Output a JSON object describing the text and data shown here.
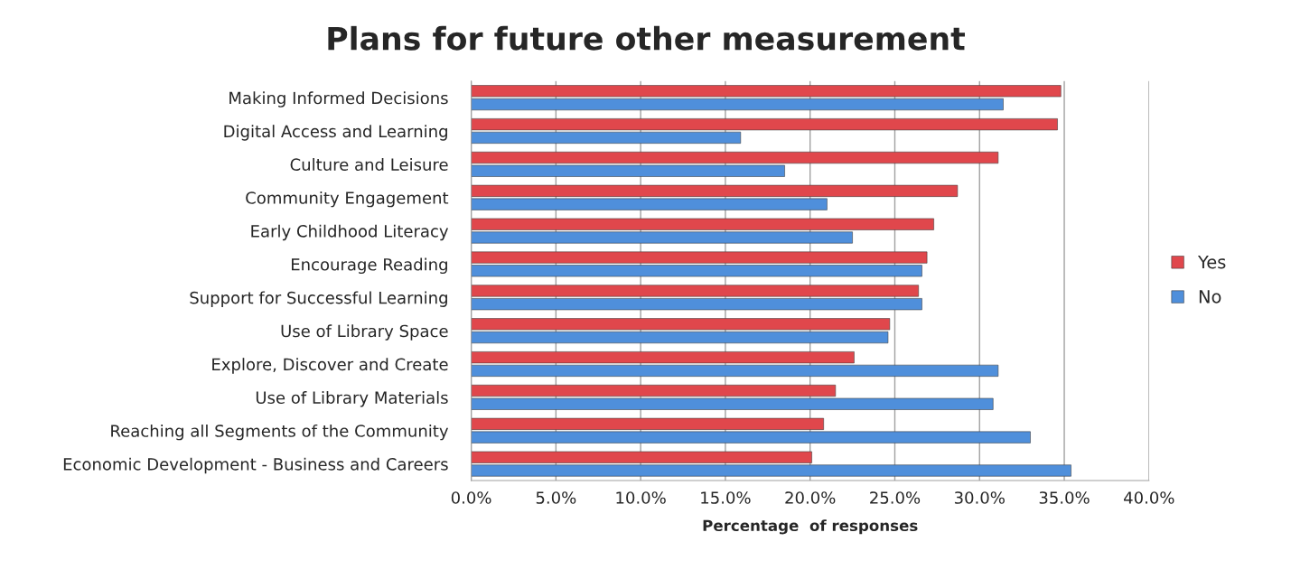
{
  "chart_data": {
    "type": "bar",
    "orientation": "horizontal",
    "title": "Plans for future other measurement",
    "xlabel": "Percentage  of responses",
    "categories": [
      "Making Informed Decisions",
      "Digital Access and Learning",
      "Culture and Leisure",
      "Community Engagement",
      "Early Childhood Literacy",
      "Encourage Reading",
      "Support for Successful Learning",
      "Use of Library Space",
      "Explore, Discover and Create",
      "Use of Library Materials",
      "Reaching all Segments of the Community",
      "Economic Development - Business and Careers"
    ],
    "series": [
      {
        "name": "Yes",
        "color": "#e0474c",
        "values": [
          34.8,
          34.6,
          31.1,
          28.7,
          27.3,
          26.9,
          26.4,
          24.7,
          22.6,
          21.5,
          20.8,
          20.1
        ]
      },
      {
        "name": "No",
        "color": "#4f8fdb",
        "values": [
          31.4,
          15.9,
          18.5,
          21.0,
          22.5,
          26.6,
          26.6,
          24.6,
          31.1,
          30.8,
          33.0,
          35.4
        ]
      }
    ],
    "xlim": [
      0,
      40
    ],
    "xticks": [
      {
        "value": 0,
        "label": "0.0%"
      },
      {
        "value": 5,
        "label": "5.0%"
      },
      {
        "value": 10,
        "label": "10.0%"
      },
      {
        "value": 15,
        "label": "15.0%"
      },
      {
        "value": 20,
        "label": "20.0%"
      },
      {
        "value": 25,
        "label": "25.0%"
      },
      {
        "value": 30,
        "label": "30.0%"
      },
      {
        "value": 35,
        "label": "35.0%"
      },
      {
        "value": 40,
        "label": "40.0%"
      }
    ],
    "grid": "x",
    "legend": "right"
  }
}
